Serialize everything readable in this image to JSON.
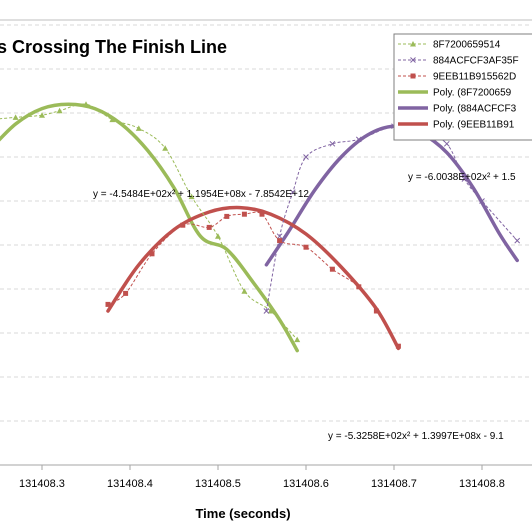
{
  "chart_data": {
    "type": "line",
    "title": "s Crossing The Finish Line",
    "xlabel": "Time (seconds)",
    "x_ticks": [
      "131408.3",
      "131408.4",
      "131408.5",
      "131408.6",
      "131408.7",
      "131408.8"
    ],
    "x_tick_values": [
      131408.3,
      131408.4,
      131408.5,
      131408.6,
      131408.7,
      131408.8
    ],
    "xlim": [
      131408.24,
      131408.84
    ],
    "grid": "horizontal",
    "legend_position": "top-right",
    "series": [
      {
        "name": "8F7200659514",
        "kind": "data",
        "color": "#9BBB59",
        "marker": "triangle",
        "points": [
          [
            131408.24,
            0.785
          ],
          [
            131408.27,
            0.79
          ],
          [
            131408.3,
            0.795
          ],
          [
            131408.32,
            0.805
          ],
          [
            131408.35,
            0.82
          ],
          [
            131408.38,
            0.785
          ],
          [
            131408.41,
            0.765
          ],
          [
            131408.44,
            0.72
          ],
          [
            131408.47,
            0.61
          ],
          [
            131408.5,
            0.52
          ],
          [
            131408.53,
            0.395
          ],
          [
            131408.56,
            0.35
          ],
          [
            131408.59,
            0.285
          ]
        ]
      },
      {
        "name": "884ACFCF3AF35F",
        "kind": "data",
        "color": "#8064A2",
        "marker": "x",
        "points": [
          [
            131408.555,
            0.35
          ],
          [
            131408.57,
            0.52
          ],
          [
            131408.585,
            0.62
          ],
          [
            131408.6,
            0.7
          ],
          [
            131408.63,
            0.73
          ],
          [
            131408.66,
            0.74
          ],
          [
            131408.7,
            0.77
          ],
          [
            131408.73,
            0.76
          ],
          [
            131408.76,
            0.73
          ],
          [
            131408.78,
            0.65
          ],
          [
            131408.8,
            0.6
          ],
          [
            131408.84,
            0.51
          ]
        ]
      },
      {
        "name": "9EEB11B915562D",
        "kind": "data",
        "color": "#C0504D",
        "marker": "square",
        "points": [
          [
            131408.375,
            0.365
          ],
          [
            131408.395,
            0.39
          ],
          [
            131408.425,
            0.48
          ],
          [
            131408.46,
            0.545
          ],
          [
            131408.49,
            0.54
          ],
          [
            131408.51,
            0.565
          ],
          [
            131408.53,
            0.57
          ],
          [
            131408.55,
            0.57
          ],
          [
            131408.57,
            0.51
          ],
          [
            131408.6,
            0.495
          ],
          [
            131408.63,
            0.445
          ],
          [
            131408.66,
            0.405
          ],
          [
            131408.68,
            0.35
          ],
          [
            131408.705,
            0.27
          ]
        ]
      },
      {
        "name": "Poly. (8F7200659",
        "kind": "trend",
        "color": "#9BBB59",
        "points": [
          [
            131408.24,
            0.715
          ],
          [
            131408.27,
            0.775
          ],
          [
            131408.3,
            0.81
          ],
          [
            131408.33,
            0.82
          ],
          [
            131408.36,
            0.81
          ],
          [
            131408.39,
            0.775
          ],
          [
            131408.42,
            0.715
          ],
          [
            131408.45,
            0.63
          ],
          [
            131408.48,
            0.52
          ],
          [
            131408.51,
            0.49
          ],
          [
            131408.54,
            0.415
          ],
          [
            131408.57,
            0.33
          ],
          [
            131408.59,
            0.26
          ]
        ]
      },
      {
        "name": "Poly. (884ACFCF3",
        "kind": "trend",
        "color": "#8064A2",
        "points": [
          [
            131408.555,
            0.455
          ],
          [
            131408.58,
            0.53
          ],
          [
            131408.61,
            0.625
          ],
          [
            131408.64,
            0.7
          ],
          [
            131408.67,
            0.75
          ],
          [
            131408.7,
            0.77
          ],
          [
            131408.73,
            0.755
          ],
          [
            131408.76,
            0.71
          ],
          [
            131408.79,
            0.63
          ],
          [
            131408.82,
            0.525
          ],
          [
            131408.84,
            0.465
          ]
        ]
      },
      {
        "name": "Poly. (9EEB11B91",
        "kind": "trend",
        "color": "#C0504D",
        "points": [
          [
            131408.375,
            0.35
          ],
          [
            131408.41,
            0.455
          ],
          [
            131408.45,
            0.535
          ],
          [
            131408.49,
            0.575
          ],
          [
            131408.525,
            0.585
          ],
          [
            131408.56,
            0.57
          ],
          [
            131408.6,
            0.525
          ],
          [
            131408.64,
            0.45
          ],
          [
            131408.68,
            0.355
          ],
          [
            131408.705,
            0.265
          ]
        ]
      }
    ],
    "equations": [
      "y = -4.5484E+02x² + 1.1954E+08x - 7.8542E+12",
      "y = -6.0038E+02x² + 1.5",
      "y = -5.3258E+02x² + 1.3997E+08x - 9.1"
    ]
  }
}
